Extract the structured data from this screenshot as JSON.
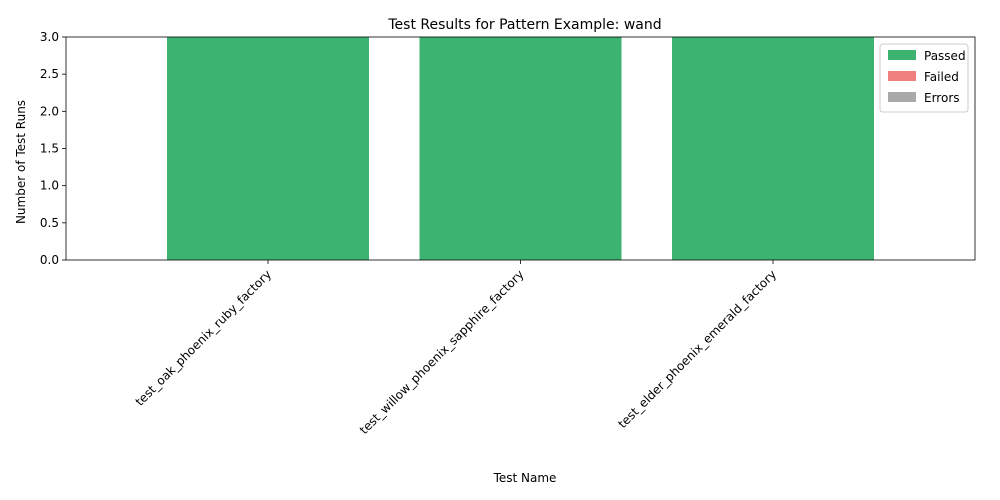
{
  "chart_data": {
    "type": "bar",
    "stacked": true,
    "title": "Test Results for Pattern Example: wand",
    "xlabel": "Test Name",
    "ylabel": "Number of Test Runs",
    "ylim": [
      0,
      3
    ],
    "yticks": [
      "0.0",
      "0.5",
      "1.0",
      "1.5",
      "2.0",
      "2.5",
      "3.0"
    ],
    "yticks_values": [
      0,
      0.5,
      1,
      1.5,
      2,
      2.5,
      3
    ],
    "categories": [
      "test_oak_phoenix_ruby_factory",
      "test_willow_phoenix_sapphire_factory",
      "test_elder_phoenix_emerald_factory"
    ],
    "series": [
      {
        "name": "Passed",
        "color": "#3cb371",
        "values": [
          3,
          3,
          3
        ]
      },
      {
        "name": "Failed",
        "color": "#f08080",
        "values": [
          0,
          0,
          0
        ]
      },
      {
        "name": "Errors",
        "color": "#a9a9a9",
        "values": [
          0,
          0,
          0
        ]
      }
    ],
    "legend_position": "top-right",
    "grid": false
  }
}
